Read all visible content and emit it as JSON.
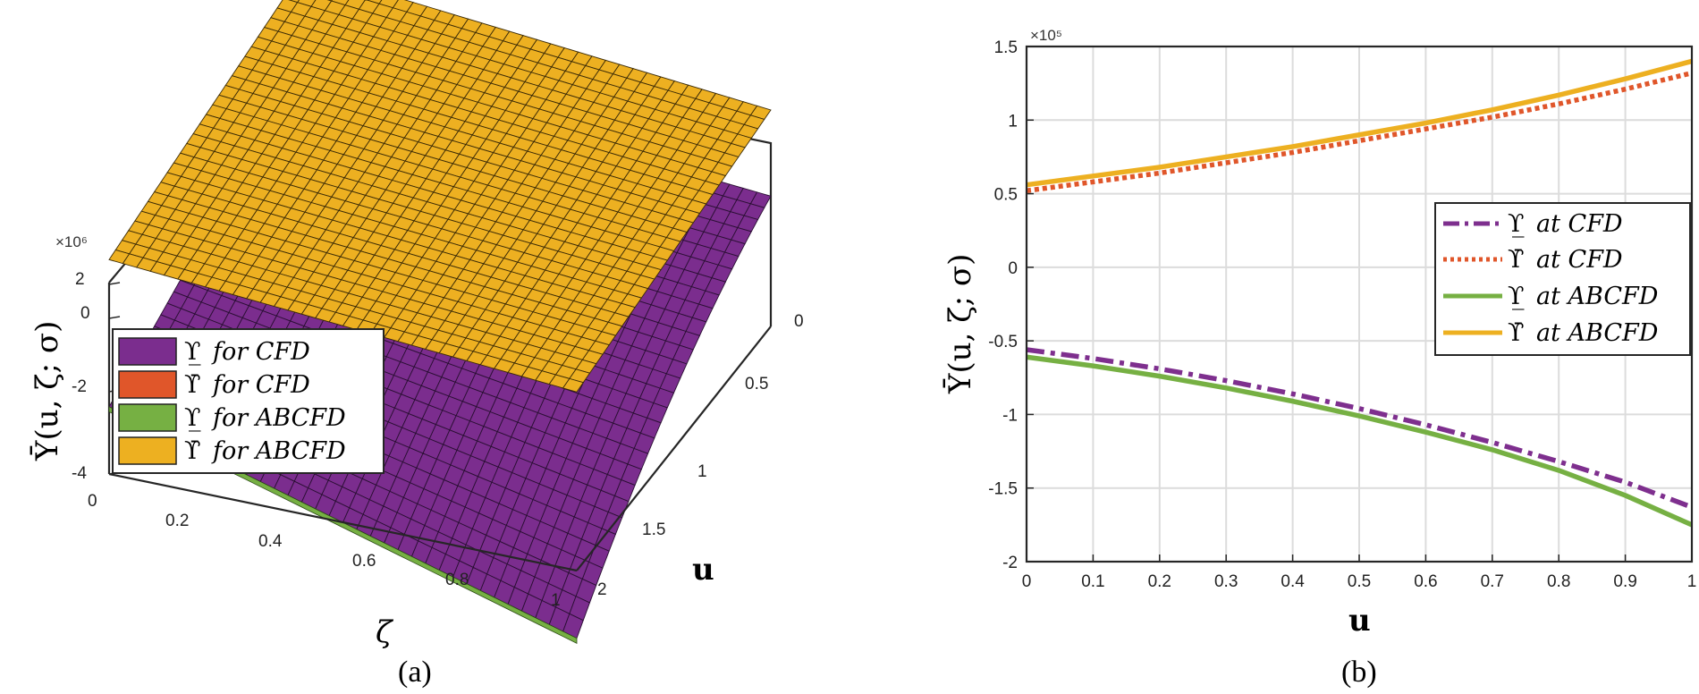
{
  "chart_data": [
    {
      "id": "a",
      "type": "surface3d",
      "caption": "(a)",
      "zlabel": "Ῡ(u, ζ; σ)",
      "xlabel": "ζ",
      "ylabel": "u",
      "exponent": "×10⁶",
      "zticks": [
        "2",
        "0",
        "-2",
        "-4"
      ],
      "xticks": [
        "0",
        "0.2",
        "0.4",
        "0.6",
        "0.8",
        "1"
      ],
      "yticks": [
        "0",
        "0.5",
        "1",
        "1.5",
        "2"
      ],
      "legend": [
        {
          "sym": "ϒ̲",
          "text": "for CFD",
          "color": "#7B2D8E"
        },
        {
          "sym": "ϒ̄",
          "text": "for CFD",
          "color": "#E0562A"
        },
        {
          "sym": "ϒ̲",
          "text": "for ABCFD",
          "color": "#76B043"
        },
        {
          "sym": "ϒ̄",
          "text": "for ABCFD",
          "color": "#EDB021"
        }
      ]
    },
    {
      "id": "b",
      "type": "line",
      "caption": "(b)",
      "ylabel": "Ῡ(u, ζ; σ)",
      "xlabel": "u",
      "exponent": "×10⁵",
      "xlim": [
        0,
        1
      ],
      "ylim": [
        -2,
        1.5
      ],
      "xticks": [
        "0",
        "0.1",
        "0.2",
        "0.3",
        "0.4",
        "0.5",
        "0.6",
        "0.7",
        "0.8",
        "0.9",
        "1"
      ],
      "yticks": [
        "1.5",
        "1",
        "0.5",
        "0",
        "-0.5",
        "-1",
        "-1.5",
        "-2"
      ],
      "x": [
        0,
        0.1,
        0.2,
        0.3,
        0.4,
        0.5,
        0.6,
        0.7,
        0.8,
        0.9,
        1.0
      ],
      "series": [
        {
          "name": "at CFD",
          "sym": "ϒ̲",
          "color": "#7E2F8E",
          "style": "dashdot",
          "values": [
            -0.56,
            -0.62,
            -0.69,
            -0.77,
            -0.86,
            -0.96,
            -1.07,
            -1.19,
            -1.32,
            -1.46,
            -1.63
          ]
        },
        {
          "name": "at CFD",
          "sym": "ϒ̄",
          "color": "#E0562A",
          "style": "dotted",
          "values": [
            0.52,
            0.58,
            0.64,
            0.71,
            0.78,
            0.86,
            0.94,
            1.02,
            1.11,
            1.21,
            1.32
          ]
        },
        {
          "name": "at ABCFD",
          "sym": "ϒ̲",
          "color": "#76B043",
          "style": "solid",
          "values": [
            -0.61,
            -0.67,
            -0.74,
            -0.82,
            -0.91,
            -1.01,
            -1.12,
            -1.24,
            -1.38,
            -1.55,
            -1.75
          ]
        },
        {
          "name": "at ABCFD",
          "sym": "ϒ̄",
          "color": "#EDB021",
          "style": "solid",
          "values": [
            0.56,
            0.62,
            0.68,
            0.75,
            0.82,
            0.9,
            0.98,
            1.07,
            1.17,
            1.28,
            1.4
          ]
        }
      ]
    }
  ]
}
